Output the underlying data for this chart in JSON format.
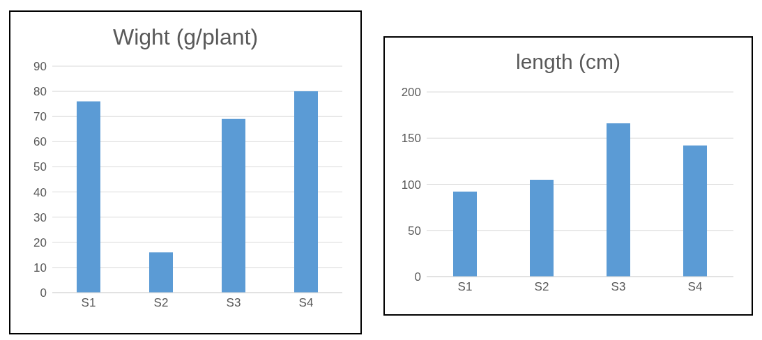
{
  "chart_data": [
    {
      "type": "bar",
      "title": "Wight (g/plant)",
      "categories": [
        "S1",
        "S2",
        "S3",
        "S4"
      ],
      "values": [
        76,
        16,
        69,
        80
      ],
      "color": "#5b9bd5",
      "ylim": [
        0,
        90
      ],
      "yticks": [
        0,
        10,
        20,
        30,
        40,
        50,
        60,
        70,
        80,
        90
      ],
      "grid": "y"
    },
    {
      "type": "bar",
      "title": "length (cm)",
      "categories": [
        "S1",
        "S2",
        "S3",
        "S4"
      ],
      "values": [
        92,
        105,
        166,
        142
      ],
      "color": "#5b9bd5",
      "ylim": [
        0,
        200
      ],
      "yticks": [
        0,
        50,
        100,
        150,
        200
      ],
      "grid": "y"
    }
  ]
}
